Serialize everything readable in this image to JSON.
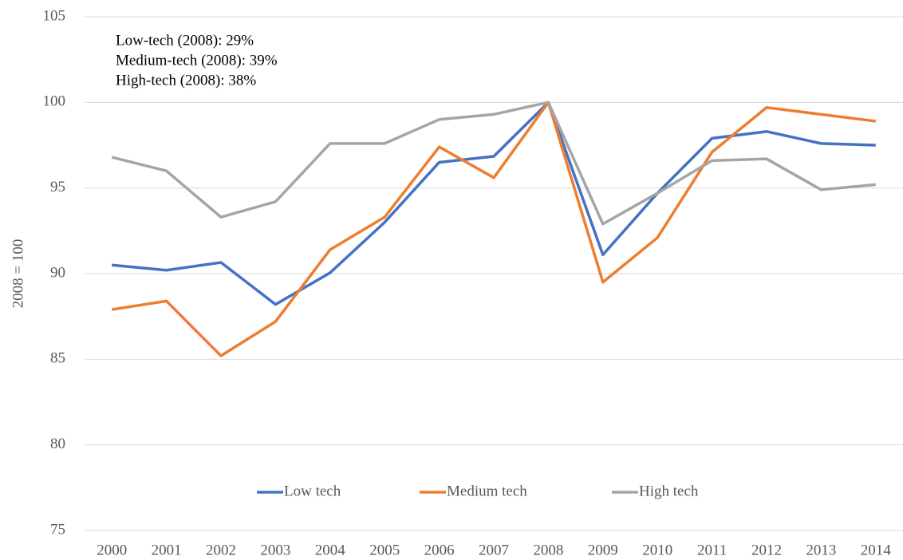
{
  "chart_data": {
    "type": "line",
    "y_label": "2008 = 100",
    "annotations": [
      "Low-tech (2008): 29%",
      "Medium-tech (2008): 39%",
      "High-tech (2008): 38%"
    ],
    "categories": [
      "2000",
      "2001",
      "2002",
      "2003",
      "2004",
      "2005",
      "2006",
      "2007",
      "2008",
      "2009",
      "2010",
      "2011",
      "2012",
      "2013",
      "2014"
    ],
    "series": [
      {
        "name": "Low tech",
        "color": "#4472c4",
        "values": [
          90.5,
          90.2,
          90.65,
          88.2,
          90.05,
          93.0,
          96.5,
          96.85,
          100,
          91.1,
          94.7,
          97.9,
          98.3,
          97.6,
          97.5
        ]
      },
      {
        "name": "Medium tech",
        "color": "#ed7d31",
        "values": [
          87.9,
          88.4,
          85.2,
          87.2,
          91.4,
          93.3,
          97.4,
          95.6,
          100,
          89.5,
          92.1,
          97.1,
          99.7,
          99.3,
          98.9
        ]
      },
      {
        "name": "High tech",
        "color": "#a5a5a5",
        "values": [
          96.8,
          96.0,
          93.3,
          94.2,
          97.6,
          97.6,
          99.0,
          99.3,
          100,
          92.9,
          94.7,
          96.6,
          96.7,
          94.9,
          95.2
        ]
      }
    ],
    "ylim": [
      75,
      105
    ],
    "yticks": [
      75,
      80,
      85,
      90,
      95,
      100,
      105
    ],
    "grid": true,
    "legend": "bottom"
  }
}
